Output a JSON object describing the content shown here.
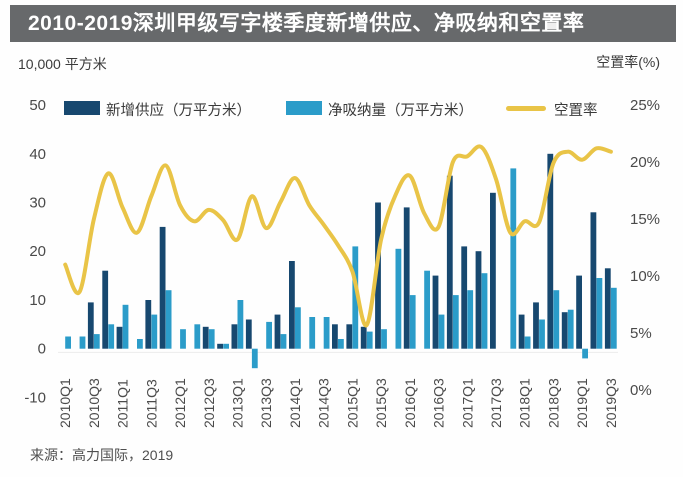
{
  "header": {
    "title": "2010-2019深圳甲级写字楼季度新增供应、净吸纳和空置率"
  },
  "axes": {
    "left_unit": "10,000 平方米",
    "right_unit": "空置率(%)"
  },
  "legend": {
    "items": [
      {
        "label": "新增供应（万平方米）",
        "type": "bar",
        "color": "#17486f"
      },
      {
        "label": "净吸纳量（万平方米）",
        "type": "bar",
        "color": "#2b9cc9"
      },
      {
        "label": "空置率",
        "type": "line",
        "color": "#e9c447"
      }
    ]
  },
  "source": {
    "text": "来源：高力国际，2019"
  },
  "chart_data": {
    "type": "bar",
    "subtype": "combo-bar-line-dual-axis",
    "title": "2010-2019深圳甲级写字楼季度新增供应、净吸纳和空置率",
    "categories": [
      "2010Q1",
      "2010Q2",
      "2010Q3",
      "2010Q4",
      "2011Q1",
      "2011Q2",
      "2011Q3",
      "2011Q4",
      "2012Q1",
      "2012Q2",
      "2012Q3",
      "2012Q4",
      "2013Q1",
      "2013Q2",
      "2013Q3",
      "2013Q4",
      "2014Q1",
      "2014Q2",
      "2014Q3",
      "2014Q4",
      "2015Q1",
      "2015Q2",
      "2015Q3",
      "2015Q4",
      "2016Q1",
      "2016Q2",
      "2016Q3",
      "2016Q4",
      "2017Q1",
      "2017Q2",
      "2017Q3",
      "2017Q4",
      "2018Q1",
      "2018Q2",
      "2018Q3",
      "2018Q4",
      "2019Q1",
      "2019Q2",
      "2019Q3"
    ],
    "x_ticks_shown": [
      "2010Q1",
      "2010Q3",
      "2011Q1",
      "2011Q3",
      "2012Q1",
      "2012Q3",
      "2013Q1",
      "2013Q3",
      "2014Q1",
      "2014Q3",
      "2015Q1",
      "2015Q3",
      "2016Q1",
      "2016Q3",
      "2017Q1",
      "2017Q3",
      "2018Q1",
      "2018Q3",
      "2019Q1",
      "2019Q3"
    ],
    "series": [
      {
        "name": "新增供应（万平方米）",
        "type": "bar",
        "axis": "left",
        "color": "#17486f",
        "values": [
          0,
          0,
          9.5,
          16,
          4.5,
          0,
          10,
          25,
          0,
          0,
          4.5,
          1,
          5,
          6,
          0,
          7,
          18,
          0,
          0,
          5,
          5,
          4.5,
          30,
          0,
          29,
          0,
          15,
          35.5,
          21,
          20,
          32,
          0,
          7,
          9.5,
          40,
          7.5,
          15,
          28,
          16.5
        ]
      },
      {
        "name": "净吸纳量（万平方米）",
        "type": "bar",
        "axis": "left",
        "color": "#2b9cc9",
        "values": [
          2.5,
          2.5,
          3,
          5,
          9,
          2,
          7,
          12,
          4,
          5,
          4,
          1,
          10,
          -4,
          5.5,
          3,
          8.5,
          6.5,
          6.5,
          2,
          21,
          3.5,
          4,
          20.5,
          11,
          16,
          7,
          11,
          12,
          15.5,
          0,
          37,
          2.5,
          6,
          12,
          8,
          -2,
          14.5,
          12.5
        ]
      },
      {
        "name": "空置率",
        "type": "line",
        "axis": "right",
        "color": "#e9c447",
        "values": [
          11,
          8.6,
          15,
          19,
          16,
          13.8,
          17,
          19.7,
          16.2,
          14.8,
          15.8,
          14.9,
          13.2,
          17,
          14.2,
          16.5,
          18.6,
          16.2,
          14.5,
          12.7,
          10.4,
          5.7,
          13.2,
          17.1,
          18.8,
          15.5,
          14.3,
          20,
          20.5,
          21.3,
          18.5,
          13.8,
          14.8,
          14.7,
          19.9,
          20.9,
          20.2,
          21.2,
          20.9
        ]
      }
    ],
    "left_axis": {
      "unit": "10,000 平方米",
      "ticks": [
        50,
        40,
        30,
        20,
        10,
        0,
        -10
      ],
      "range": [
        -10,
        50
      ]
    },
    "right_axis": {
      "unit": "空置率(%)",
      "ticks": [
        "25%",
        "20%",
        "15%",
        "10%",
        "5%",
        "0%"
      ],
      "range": [
        0,
        25
      ]
    },
    "grid": false,
    "legend_position": "top"
  }
}
